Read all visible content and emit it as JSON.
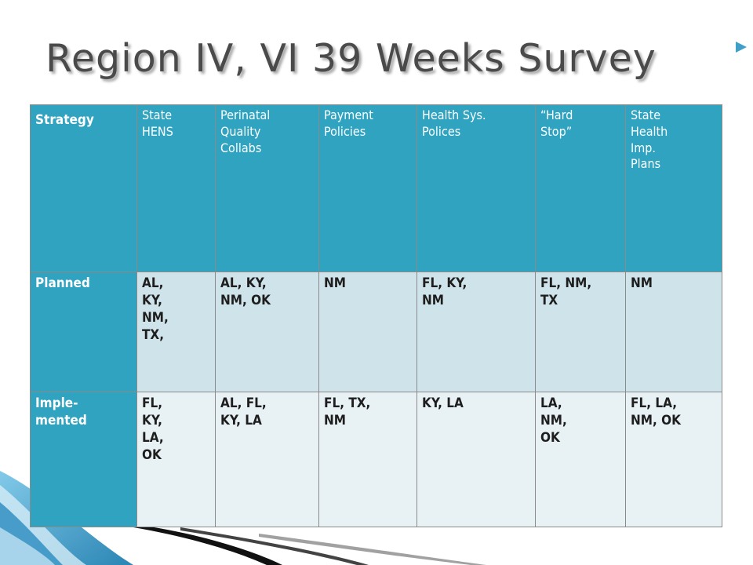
{
  "slide": {
    "title": "Region IV, VI 39 Weeks Survey"
  },
  "table": {
    "header": [
      "Strategy",
      "State\nHENS",
      "Perinatal\nQuality\nCollabs",
      "Payment\nPolicies",
      "Health Sys.\nPolices",
      "“Hard\nStop”",
      "State\nHealth\nImp.\nPlans"
    ],
    "rows": [
      {
        "label": "Planned",
        "cells": [
          "AL,\nKY,\nNM,\nTX,",
          "AL, KY,\nNM, OK",
          "NM",
          "FL, KY,\nNM",
          "FL, NM,\nTX",
          "NM"
        ]
      },
      {
        "label": "Imple-\nmented",
        "cells": [
          "FL,\nKY,\nLA,\nOK",
          "AL, FL,\nKY, LA",
          "FL, TX,\nNM",
          "KY, LA",
          "LA,\nNM,\nOK",
          "FL, LA,\nNM, OK"
        ]
      }
    ]
  },
  "colors": {
    "header_bg": "#2fa3c0",
    "planned_bg": "#cfe3ea",
    "implemented_bg": "#e8f1f4",
    "title_color": "#4a4a4a",
    "accent_blue": "#3f9fc8"
  },
  "decor": {
    "corner": "blue-swoosh-corner",
    "bottom_line": "black-arrow-line"
  }
}
